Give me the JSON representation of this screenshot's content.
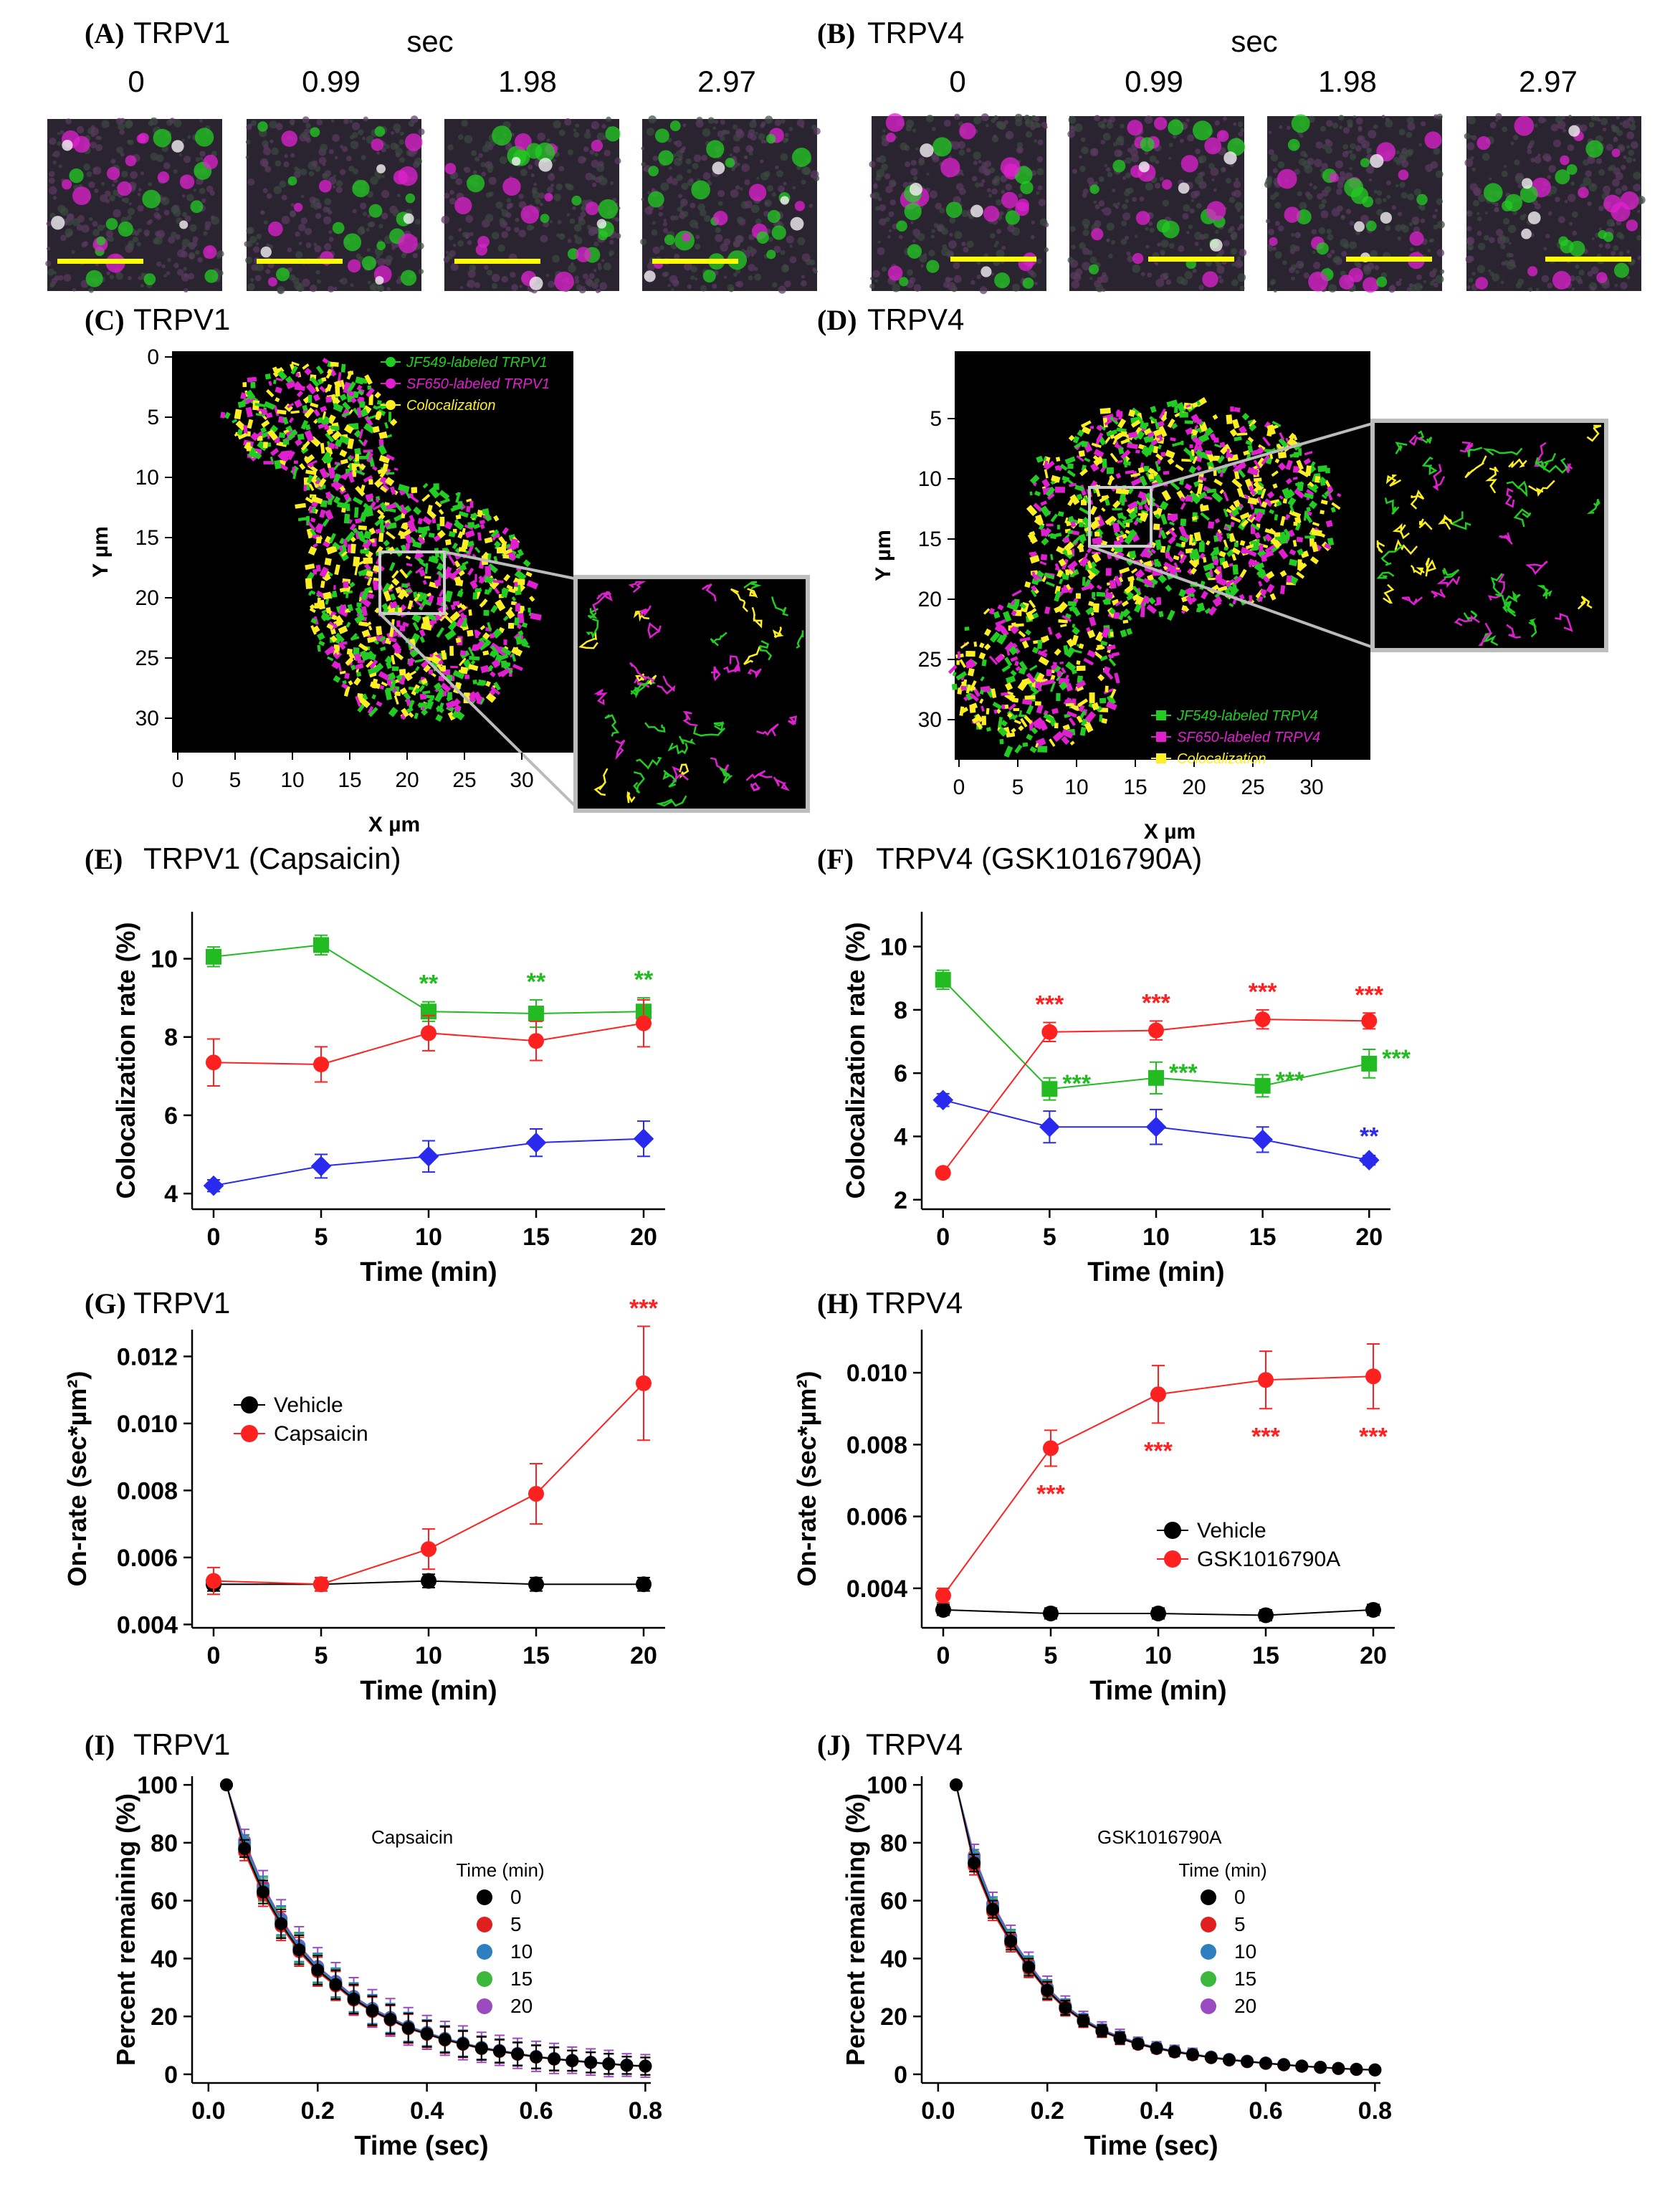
{
  "figure": {
    "panelA": {
      "letter": "(A)",
      "title": "TRPV1",
      "time_unit": "sec",
      "times": [
        "0",
        "0.99",
        "1.98",
        "2.97"
      ]
    },
    "panelB": {
      "letter": "(B)",
      "title": "TRPV4",
      "time_unit": "sec",
      "times": [
        "0",
        "0.99",
        "1.98",
        "2.97"
      ]
    },
    "panelC": {
      "letter": "(C)",
      "title": "TRPV1",
      "xlabel": "X µm",
      "ylabel": "Y µm",
      "xticks": [
        "0",
        "5",
        "10",
        "15",
        "20",
        "25",
        "30"
      ],
      "yticks": [
        "0",
        "5",
        "10",
        "15",
        "20",
        "25",
        "30"
      ],
      "legend": [
        "JF549-labeled TRPV1",
        "SF650-labeled TRPV1",
        "Colocalization"
      ]
    },
    "panelD": {
      "letter": "(D)",
      "title": "TRPV4",
      "xlabel": "X µm",
      "ylabel": "Y µm",
      "xticks": [
        "0",
        "5",
        "10",
        "15",
        "20",
        "25",
        "30"
      ],
      "yticks": [
        "5",
        "10",
        "15",
        "20",
        "25",
        "30"
      ],
      "legend": [
        "JF549-labeled TRPV4",
        "SF650-labeled TRPV4",
        "Colocalization"
      ]
    },
    "colors": {
      "green": "#22cc22",
      "magenta": "#e020d0",
      "yellow": "#ffee22",
      "red": "#ff2020",
      "blue": "#2a2aee",
      "black": "#000000",
      "scalebar": "#ffff00"
    }
  },
  "chart_data": [
    {
      "id": "E",
      "letter": "(E)",
      "title": "TRPV1 (Capsaicin)",
      "type": "line",
      "xlabel": "Time (min)",
      "ylabel": "Colocalization rate (%)",
      "x": [
        0,
        5,
        10,
        15,
        20
      ],
      "xlim": [
        -1,
        21
      ],
      "ylim": [
        3.6,
        11.2
      ],
      "xticks": [
        0,
        5,
        10,
        15,
        20
      ],
      "yticks": [
        4,
        6,
        8,
        10
      ],
      "series": [
        {
          "name": "green",
          "color": "#22bb22",
          "marker": "square",
          "values": [
            10.05,
            10.35,
            8.65,
            8.6,
            8.65
          ],
          "err": [
            0.25,
            0.25,
            0.25,
            0.35,
            0.35
          ],
          "sig": [
            "",
            "",
            "**",
            "**",
            "**"
          ]
        },
        {
          "name": "red",
          "color": "#ff2020",
          "marker": "circle",
          "values": [
            7.35,
            7.3,
            8.1,
            7.9,
            8.35
          ],
          "err": [
            0.6,
            0.45,
            0.45,
            0.5,
            0.6
          ],
          "sig": [
            "",
            "",
            "",
            "",
            ""
          ]
        },
        {
          "name": "blue",
          "color": "#2a2aee",
          "marker": "diamond",
          "values": [
            4.2,
            4.7,
            4.95,
            5.3,
            5.4
          ],
          "err": [
            0.15,
            0.3,
            0.4,
            0.35,
            0.45
          ],
          "sig": [
            "",
            "",
            "",
            "",
            ""
          ]
        }
      ]
    },
    {
      "id": "F",
      "letter": "(F)",
      "title": "TRPV4 (GSK1016790A)",
      "type": "line",
      "xlabel": "Time (min)",
      "ylabel": "Colocalization rate (%)",
      "x": [
        0,
        5,
        10,
        15,
        20
      ],
      "xlim": [
        -1,
        21
      ],
      "ylim": [
        1.7,
        11.1
      ],
      "xticks": [
        0,
        5,
        10,
        15,
        20
      ],
      "yticks": [
        2,
        4,
        6,
        8,
        10
      ],
      "series": [
        {
          "name": "green",
          "color": "#22bb22",
          "marker": "square",
          "values": [
            8.95,
            5.5,
            5.85,
            5.6,
            6.3
          ],
          "err": [
            0.3,
            0.35,
            0.5,
            0.35,
            0.45
          ],
          "sig": [
            "",
            "***",
            "***",
            "***",
            "***"
          ]
        },
        {
          "name": "red",
          "color": "#ff2020",
          "marker": "circle",
          "values": [
            2.85,
            7.3,
            7.35,
            7.7,
            7.65
          ],
          "err": [
            0.1,
            0.3,
            0.3,
            0.3,
            0.25
          ],
          "sig": [
            "",
            "***",
            "***",
            "***",
            "***"
          ]
        },
        {
          "name": "blue",
          "color": "#2a2aee",
          "marker": "diamond",
          "values": [
            5.15,
            4.3,
            4.3,
            3.9,
            3.25
          ],
          "err": [
            0.2,
            0.5,
            0.55,
            0.4,
            0.15
          ],
          "sig": [
            "",
            "",
            "",
            "",
            "**"
          ]
        }
      ]
    },
    {
      "id": "G",
      "letter": "(G)",
      "title": "TRPV1",
      "type": "line",
      "xlabel": "Time (min)",
      "ylabel": "On-rate (sec*µm²)",
      "x": [
        0,
        5,
        10,
        15,
        20
      ],
      "xlim": [
        -1,
        21
      ],
      "ylim": [
        0.0039,
        0.0128
      ],
      "xticks": [
        0,
        5,
        10,
        15,
        20
      ],
      "yticks": [
        0.004,
        0.006,
        0.008,
        0.01,
        0.012
      ],
      "ytick_labels": [
        "0.004",
        "0.006",
        "0.008",
        "0.010",
        "0.012"
      ],
      "series": [
        {
          "name": "Vehicle",
          "color": "#000000",
          "marker": "circle",
          "values": [
            0.0052,
            0.0052,
            0.0053,
            0.0052,
            0.0052
          ],
          "err": [
            0.0002,
            0.0002,
            0.0002,
            0.0002,
            0.0002
          ],
          "sig": [
            "",
            "",
            "",
            "",
            ""
          ]
        },
        {
          "name": "Capsaicin",
          "color": "#ff2020",
          "marker": "circle",
          "values": [
            0.0053,
            0.0052,
            0.00625,
            0.0079,
            0.0112
          ],
          "err": [
            0.0004,
            0.0002,
            0.0006,
            0.0009,
            0.0017
          ],
          "sig": [
            "",
            "",
            "",
            "",
            "***"
          ]
        }
      ],
      "legend": [
        "Vehicle",
        "Capsaicin"
      ]
    },
    {
      "id": "H",
      "letter": "(H)",
      "title": "TRPV4",
      "type": "line",
      "xlabel": "Time (min)",
      "ylabel": "On-rate (sec*µm²)",
      "x": [
        0,
        5,
        10,
        15,
        20
      ],
      "xlim": [
        -1,
        21
      ],
      "ylim": [
        0.0029,
        0.0112
      ],
      "xticks": [
        0,
        5,
        10,
        15,
        20
      ],
      "yticks": [
        0.004,
        0.006,
        0.008,
        0.01
      ],
      "ytick_labels": [
        "0.004",
        "0.006",
        "0.008",
        "0.010"
      ],
      "series": [
        {
          "name": "Vehicle",
          "color": "#000000",
          "marker": "circle",
          "values": [
            0.0034,
            0.0033,
            0.0033,
            0.00325,
            0.0034
          ],
          "err": [
            0.00015,
            0.00015,
            0.00015,
            0.00015,
            0.00015
          ],
          "sig": [
            "",
            "",
            "",
            "",
            ""
          ]
        },
        {
          "name": "GSK1016790A",
          "color": "#ff2020",
          "marker": "circle",
          "values": [
            0.0038,
            0.0079,
            0.0094,
            0.0098,
            0.0099
          ],
          "err": [
            0.0002,
            0.0005,
            0.0008,
            0.0008,
            0.0009
          ],
          "sig": [
            "",
            "***",
            "***",
            "***",
            "***"
          ]
        }
      ],
      "legend": [
        "Vehicle",
        "GSK1016790A"
      ]
    },
    {
      "id": "I",
      "letter": "(I)",
      "title": "TRPV1",
      "type": "line",
      "xlabel": "Time (sec)",
      "ylabel": "Percent remaining (%)",
      "annotation": "Capsaicin",
      "xlim": [
        -0.03,
        0.81
      ],
      "ylim": [
        -3,
        103
      ],
      "xticks": [
        0,
        0.2,
        0.4,
        0.6,
        0.8
      ],
      "xtick_labels": [
        "0.0",
        "0.2",
        "0.4",
        "0.6",
        "0.8"
      ],
      "yticks": [
        0,
        20,
        40,
        60,
        80,
        100
      ],
      "x": [
        0.033,
        0.066,
        0.1,
        0.133,
        0.166,
        0.2,
        0.233,
        0.266,
        0.3,
        0.333,
        0.366,
        0.4,
        0.433,
        0.466,
        0.5,
        0.533,
        0.566,
        0.6,
        0.633,
        0.666,
        0.7,
        0.733,
        0.766,
        0.8
      ],
      "values": [
        100,
        78,
        63,
        52,
        43,
        36,
        31,
        26,
        22,
        19,
        16,
        14,
        12,
        10.5,
        9,
        8,
        7,
        6,
        5.3,
        4.7,
        4.1,
        3.6,
        3.1,
        2.8
      ],
      "err": [
        0,
        3,
        4,
        5,
        5,
        5,
        5,
        5,
        5,
        5,
        5,
        4.5,
        4.5,
        4.5,
        4,
        4,
        4,
        4,
        4,
        3.5,
        3.5,
        3.5,
        3,
        3
      ],
      "series": [
        {
          "name": "0",
          "color": "#000000"
        },
        {
          "name": "5",
          "color": "#e02020"
        },
        {
          "name": "10",
          "color": "#2e7fc0"
        },
        {
          "name": "15",
          "color": "#3cb83c"
        },
        {
          "name": "20",
          "color": "#9a4bc0"
        }
      ],
      "legend_title": "Time (min)"
    },
    {
      "id": "J",
      "letter": "(J)",
      "title": "TRPV4",
      "type": "line",
      "xlabel": "Time (sec)",
      "ylabel": "Percent remaining (%)",
      "annotation": "GSK1016790A",
      "xlim": [
        -0.03,
        0.81
      ],
      "ylim": [
        -3,
        103
      ],
      "xticks": [
        0,
        0.2,
        0.4,
        0.6,
        0.8
      ],
      "xtick_labels": [
        "0.0",
        "0.2",
        "0.4",
        "0.6",
        "0.8"
      ],
      "yticks": [
        0,
        20,
        40,
        60,
        80,
        100
      ],
      "x": [
        0.033,
        0.066,
        0.1,
        0.133,
        0.166,
        0.2,
        0.233,
        0.266,
        0.3,
        0.333,
        0.366,
        0.4,
        0.433,
        0.466,
        0.5,
        0.533,
        0.566,
        0.6,
        0.633,
        0.666,
        0.7,
        0.733,
        0.766,
        0.8
      ],
      "values": [
        100,
        73,
        57,
        46,
        37,
        29,
        23,
        18.5,
        15,
        12.5,
        10.5,
        9,
        7.8,
        6.8,
        5.8,
        5,
        4.4,
        3.8,
        3.3,
        2.8,
        2.4,
        2,
        1.7,
        1.5
      ],
      "err": [
        0,
        3,
        3,
        3,
        3,
        3,
        2.5,
        2,
        2,
        2,
        1.5,
        1.5,
        1.5,
        1.5,
        1,
        1,
        1,
        1,
        1,
        1,
        1,
        1,
        1,
        1
      ],
      "series": [
        {
          "name": "0",
          "color": "#000000"
        },
        {
          "name": "5",
          "color": "#e02020"
        },
        {
          "name": "10",
          "color": "#2e7fc0"
        },
        {
          "name": "15",
          "color": "#3cb83c"
        },
        {
          "name": "20",
          "color": "#9a4bc0"
        }
      ],
      "legend_title": "Time (min)"
    }
  ]
}
